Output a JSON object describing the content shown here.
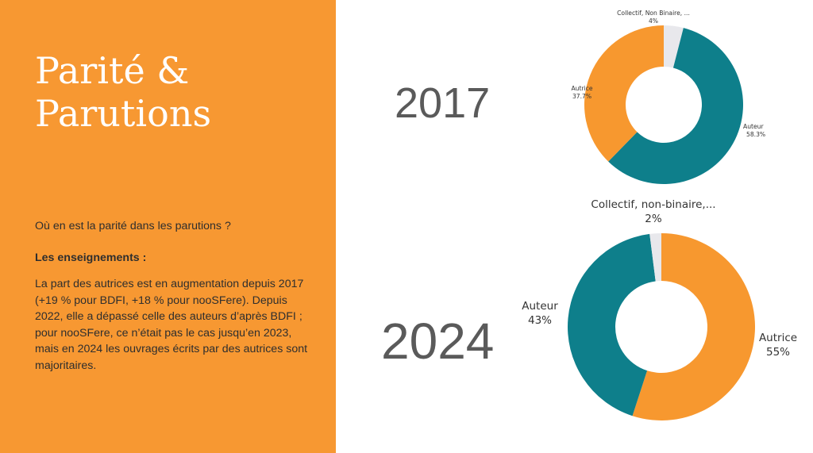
{
  "slide": {
    "title_line1": "Parité &",
    "title_line2": "Parutions",
    "question": "Où en est la parité dans les parutions ?",
    "lessons_heading": "Les enseignements :",
    "lessons_text": "La part des autrices est en augmentation depuis 2017 (+19 % pour BDFI, +18 % pour nooSFere). Depuis 2022, elle a dépassé celle des auteurs d’après BDFI ; pour nooSFere, ce n’était pas le cas jusqu’en 2023, mais en 2024 les ouvrages écrits par des autrices sont majoritaires."
  },
  "colors": {
    "panel": "#f79832",
    "autrice": "#f7982f",
    "auteur": "#0e7f8b",
    "collectif": "#e8e8ec"
  },
  "chart_data": [
    {
      "type": "pie",
      "year_label": "2017",
      "donut": true,
      "slices": [
        {
          "label": "Auteur",
          "value_label": "58.3%",
          "value": 58.3,
          "color": "#0e7f8b"
        },
        {
          "label": "Autrice",
          "value_label": "37.7%",
          "value": 37.7,
          "color": "#f7982f"
        },
        {
          "label": "Collectif, Non Binaire, ...",
          "value_label": "4%",
          "value": 4,
          "color": "#e8e8ec"
        }
      ]
    },
    {
      "type": "pie",
      "year_label": "2024",
      "donut": true,
      "slices": [
        {
          "label": "Autrice",
          "value_label": "55%",
          "value": 55,
          "color": "#f7982f"
        },
        {
          "label": "Auteur",
          "value_label": "43%",
          "value": 43,
          "color": "#0e7f8b"
        },
        {
          "label": "Collectif, non-binaire,...",
          "value_label": "2%",
          "value": 2,
          "color": "#e8e8ec"
        }
      ]
    }
  ]
}
